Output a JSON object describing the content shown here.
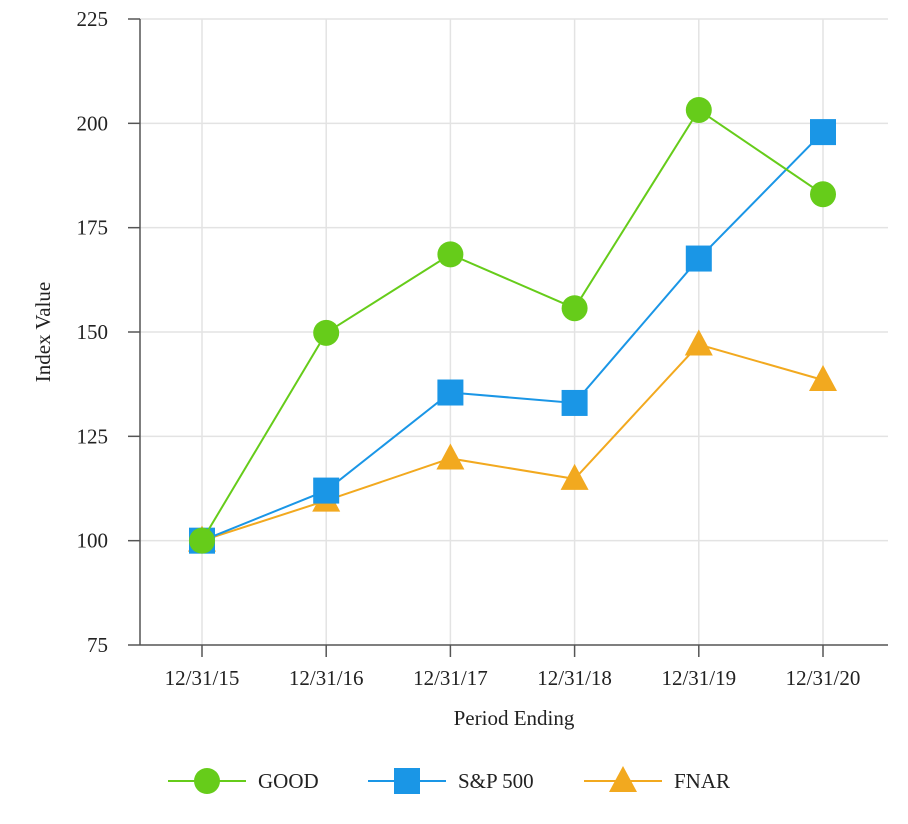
{
  "chart_data": {
    "type": "line",
    "title": "",
    "xlabel": "Period Ending",
    "ylabel": "Index Value",
    "ylim": [
      75,
      225
    ],
    "yticks": [
      75,
      100,
      125,
      150,
      175,
      200,
      225
    ],
    "categories": [
      "12/31/15",
      "12/31/16",
      "12/31/17",
      "12/31/18",
      "12/31/19",
      "12/31/20"
    ],
    "grid": true,
    "legend_position": "bottom",
    "series": [
      {
        "name": "GOOD",
        "color": "#66cc1a",
        "marker": "circle",
        "values": [
          100,
          149.8,
          168.6,
          155.7,
          203.2,
          183.0
        ]
      },
      {
        "name": "S&P 500",
        "color": "#1a96e6",
        "marker": "square",
        "values": [
          100,
          112.0,
          135.5,
          133.0,
          167.6,
          197.9
        ]
      },
      {
        "name": "FNAR",
        "color": "#f2a91f",
        "marker": "triangle",
        "values": [
          100,
          109.6,
          119.7,
          114.8,
          147.0,
          138.5
        ]
      }
    ]
  }
}
